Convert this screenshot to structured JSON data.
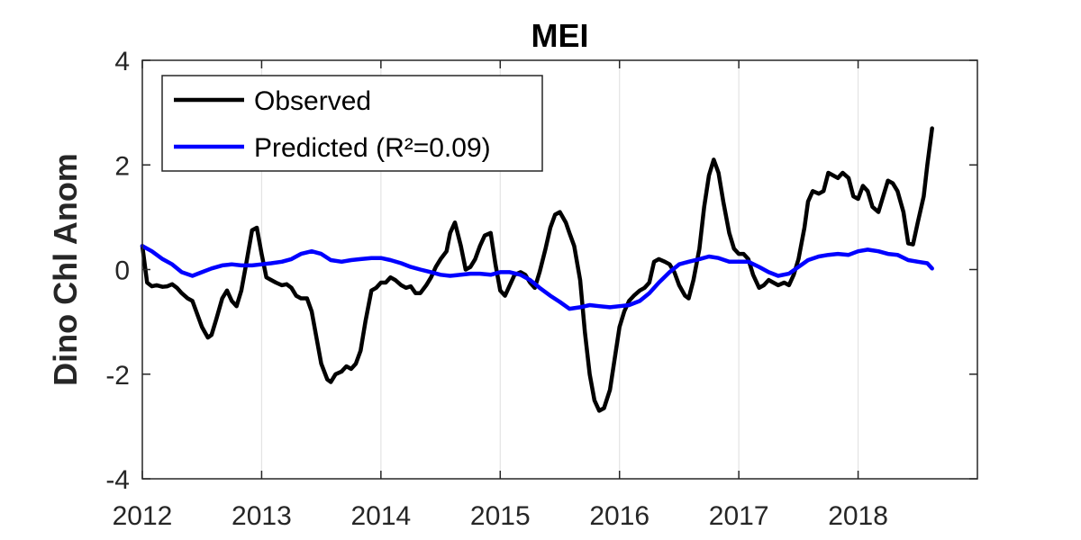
{
  "chart_data": {
    "type": "line",
    "title": "MEI",
    "xlabel": "",
    "ylabel": "Dino Chl Anom",
    "xlim": [
      2012,
      2019
    ],
    "ylim": [
      -4,
      4
    ],
    "x_ticks": [
      "2012",
      "2013",
      "2014",
      "2015",
      "2016",
      "2017",
      "2018"
    ],
    "y_ticks": [
      "-4",
      "-2",
      "0",
      "2",
      "4"
    ],
    "grid": "vertical",
    "legend_position": "top-left",
    "series": [
      {
        "name": "Observed",
        "color": "#000000",
        "points": [
          [
            2012.0,
            0.45
          ],
          [
            2012.04,
            -0.25
          ],
          [
            2012.08,
            -0.32
          ],
          [
            2012.12,
            -0.3
          ],
          [
            2012.17,
            -0.33
          ],
          [
            2012.21,
            -0.32
          ],
          [
            2012.25,
            -0.28
          ],
          [
            2012.29,
            -0.35
          ],
          [
            2012.33,
            -0.45
          ],
          [
            2012.38,
            -0.55
          ],
          [
            2012.42,
            -0.6
          ],
          [
            2012.46,
            -0.85
          ],
          [
            2012.5,
            -1.1
          ],
          [
            2012.55,
            -1.3
          ],
          [
            2012.58,
            -1.25
          ],
          [
            2012.62,
            -0.95
          ],
          [
            2012.67,
            -0.55
          ],
          [
            2012.71,
            -0.4
          ],
          [
            2012.75,
            -0.6
          ],
          [
            2012.79,
            -0.7
          ],
          [
            2012.83,
            -0.4
          ],
          [
            2012.87,
            0.1
          ],
          [
            2012.92,
            0.75
          ],
          [
            2012.96,
            0.8
          ],
          [
            2013.0,
            0.3
          ],
          [
            2013.04,
            -0.15
          ],
          [
            2013.08,
            -0.2
          ],
          [
            2013.12,
            -0.25
          ],
          [
            2013.17,
            -0.3
          ],
          [
            2013.21,
            -0.28
          ],
          [
            2013.25,
            -0.35
          ],
          [
            2013.29,
            -0.5
          ],
          [
            2013.33,
            -0.55
          ],
          [
            2013.38,
            -0.55
          ],
          [
            2013.42,
            -0.8
          ],
          [
            2013.46,
            -1.3
          ],
          [
            2013.5,
            -1.8
          ],
          [
            2013.55,
            -2.1
          ],
          [
            2013.58,
            -2.15
          ],
          [
            2013.62,
            -2.0
          ],
          [
            2013.67,
            -1.95
          ],
          [
            2013.71,
            -1.85
          ],
          [
            2013.75,
            -1.9
          ],
          [
            2013.79,
            -1.8
          ],
          [
            2013.83,
            -1.55
          ],
          [
            2013.87,
            -1.0
          ],
          [
            2013.92,
            -0.4
          ],
          [
            2013.96,
            -0.35
          ],
          [
            2014.0,
            -0.25
          ],
          [
            2014.04,
            -0.25
          ],
          [
            2014.08,
            -0.15
          ],
          [
            2014.12,
            -0.2
          ],
          [
            2014.17,
            -0.3
          ],
          [
            2014.21,
            -0.35
          ],
          [
            2014.25,
            -0.32
          ],
          [
            2014.29,
            -0.45
          ],
          [
            2014.33,
            -0.45
          ],
          [
            2014.38,
            -0.3
          ],
          [
            2014.42,
            -0.15
          ],
          [
            2014.46,
            0.05
          ],
          [
            2014.5,
            0.2
          ],
          [
            2014.55,
            0.35
          ],
          [
            2014.58,
            0.7
          ],
          [
            2014.62,
            0.9
          ],
          [
            2014.67,
            0.45
          ],
          [
            2014.71,
            0.0
          ],
          [
            2014.75,
            0.05
          ],
          [
            2014.79,
            0.2
          ],
          [
            2014.83,
            0.45
          ],
          [
            2014.87,
            0.65
          ],
          [
            2014.92,
            0.7
          ],
          [
            2014.96,
            0.1
          ],
          [
            2015.0,
            -0.4
          ],
          [
            2015.04,
            -0.5
          ],
          [
            2015.08,
            -0.3
          ],
          [
            2015.12,
            -0.1
          ],
          [
            2015.17,
            -0.05
          ],
          [
            2015.21,
            -0.1
          ],
          [
            2015.25,
            -0.25
          ],
          [
            2015.29,
            -0.35
          ],
          [
            2015.33,
            -0.05
          ],
          [
            2015.38,
            0.4
          ],
          [
            2015.42,
            0.8
          ],
          [
            2015.46,
            1.05
          ],
          [
            2015.5,
            1.1
          ],
          [
            2015.55,
            0.9
          ],
          [
            2015.58,
            0.7
          ],
          [
            2015.62,
            0.45
          ],
          [
            2015.67,
            -0.2
          ],
          [
            2015.71,
            -1.2
          ],
          [
            2015.75,
            -2.0
          ],
          [
            2015.79,
            -2.5
          ],
          [
            2015.83,
            -2.7
          ],
          [
            2015.87,
            -2.65
          ],
          [
            2015.92,
            -2.3
          ],
          [
            2015.96,
            -1.7
          ],
          [
            2016.0,
            -1.1
          ],
          [
            2016.04,
            -0.8
          ],
          [
            2016.08,
            -0.6
          ],
          [
            2016.12,
            -0.5
          ],
          [
            2016.17,
            -0.4
          ],
          [
            2016.21,
            -0.35
          ],
          [
            2016.25,
            -0.25
          ],
          [
            2016.29,
            0.15
          ],
          [
            2016.33,
            0.2
          ],
          [
            2016.38,
            0.15
          ],
          [
            2016.42,
            0.1
          ],
          [
            2016.46,
            -0.05
          ],
          [
            2016.5,
            -0.3
          ],
          [
            2016.55,
            -0.5
          ],
          [
            2016.58,
            -0.55
          ],
          [
            2016.62,
            -0.2
          ],
          [
            2016.67,
            0.4
          ],
          [
            2016.71,
            1.2
          ],
          [
            2016.75,
            1.8
          ],
          [
            2016.79,
            2.1
          ],
          [
            2016.83,
            1.85
          ],
          [
            2016.87,
            1.3
          ],
          [
            2016.92,
            0.7
          ],
          [
            2016.96,
            0.4
          ],
          [
            2017.0,
            0.3
          ],
          [
            2017.04,
            0.3
          ],
          [
            2017.08,
            0.2
          ],
          [
            2017.12,
            -0.1
          ],
          [
            2017.17,
            -0.35
          ],
          [
            2017.21,
            -0.3
          ],
          [
            2017.25,
            -0.2
          ],
          [
            2017.29,
            -0.25
          ],
          [
            2017.33,
            -0.3
          ],
          [
            2017.38,
            -0.25
          ],
          [
            2017.42,
            -0.3
          ],
          [
            2017.46,
            -0.1
          ],
          [
            2017.5,
            0.2
          ],
          [
            2017.55,
            0.8
          ],
          [
            2017.58,
            1.3
          ],
          [
            2017.62,
            1.5
          ],
          [
            2017.67,
            1.45
          ],
          [
            2017.71,
            1.5
          ],
          [
            2017.75,
            1.85
          ],
          [
            2017.79,
            1.8
          ],
          [
            2017.83,
            1.75
          ],
          [
            2017.87,
            1.85
          ],
          [
            2017.92,
            1.75
          ],
          [
            2017.96,
            1.4
          ],
          [
            2018.0,
            1.35
          ],
          [
            2018.04,
            1.6
          ],
          [
            2018.08,
            1.5
          ],
          [
            2018.12,
            1.2
          ],
          [
            2018.17,
            1.1
          ],
          [
            2018.21,
            1.4
          ],
          [
            2018.25,
            1.7
          ],
          [
            2018.29,
            1.65
          ],
          [
            2018.33,
            1.5
          ],
          [
            2018.38,
            1.1
          ],
          [
            2018.42,
            0.5
          ],
          [
            2018.46,
            0.48
          ],
          [
            2018.5,
            0.9
          ],
          [
            2018.55,
            1.4
          ],
          [
            2018.58,
            2.0
          ],
          [
            2018.62,
            2.7
          ]
        ]
      },
      {
        "name": "Predicted (R²=0.09)",
        "color": "#0000FF",
        "points": [
          [
            2012.0,
            0.45
          ],
          [
            2012.08,
            0.35
          ],
          [
            2012.17,
            0.2
          ],
          [
            2012.25,
            0.1
          ],
          [
            2012.33,
            -0.05
          ],
          [
            2012.42,
            -0.12
          ],
          [
            2012.5,
            -0.05
          ],
          [
            2012.58,
            0.02
          ],
          [
            2012.67,
            0.08
          ],
          [
            2012.75,
            0.1
          ],
          [
            2012.83,
            0.08
          ],
          [
            2012.92,
            0.08
          ],
          [
            2013.0,
            0.1
          ],
          [
            2013.08,
            0.12
          ],
          [
            2013.17,
            0.15
          ],
          [
            2013.25,
            0.2
          ],
          [
            2013.33,
            0.3
          ],
          [
            2013.42,
            0.35
          ],
          [
            2013.5,
            0.3
          ],
          [
            2013.58,
            0.18
          ],
          [
            2013.67,
            0.15
          ],
          [
            2013.75,
            0.18
          ],
          [
            2013.83,
            0.2
          ],
          [
            2013.92,
            0.22
          ],
          [
            2014.0,
            0.22
          ],
          [
            2014.08,
            0.18
          ],
          [
            2014.17,
            0.12
          ],
          [
            2014.25,
            0.05
          ],
          [
            2014.33,
            0.0
          ],
          [
            2014.42,
            -0.05
          ],
          [
            2014.5,
            -0.1
          ],
          [
            2014.58,
            -0.12
          ],
          [
            2014.67,
            -0.1
          ],
          [
            2014.75,
            -0.08
          ],
          [
            2014.83,
            -0.08
          ],
          [
            2014.92,
            -0.1
          ],
          [
            2015.0,
            -0.05
          ],
          [
            2015.08,
            -0.05
          ],
          [
            2015.17,
            -0.1
          ],
          [
            2015.25,
            -0.2
          ],
          [
            2015.33,
            -0.35
          ],
          [
            2015.42,
            -0.5
          ],
          [
            2015.5,
            -0.62
          ],
          [
            2015.58,
            -0.75
          ],
          [
            2015.67,
            -0.72
          ],
          [
            2015.75,
            -0.68
          ],
          [
            2015.83,
            -0.7
          ],
          [
            2015.92,
            -0.72
          ],
          [
            2016.0,
            -0.7
          ],
          [
            2016.08,
            -0.68
          ],
          [
            2016.17,
            -0.6
          ],
          [
            2016.25,
            -0.45
          ],
          [
            2016.33,
            -0.25
          ],
          [
            2016.42,
            -0.05
          ],
          [
            2016.5,
            0.1
          ],
          [
            2016.58,
            0.15
          ],
          [
            2016.67,
            0.2
          ],
          [
            2016.75,
            0.25
          ],
          [
            2016.83,
            0.22
          ],
          [
            2016.92,
            0.15
          ],
          [
            2017.0,
            0.15
          ],
          [
            2017.08,
            0.15
          ],
          [
            2017.17,
            0.05
          ],
          [
            2017.25,
            -0.05
          ],
          [
            2017.33,
            -0.12
          ],
          [
            2017.42,
            -0.08
          ],
          [
            2017.5,
            0.05
          ],
          [
            2017.58,
            0.18
          ],
          [
            2017.67,
            0.25
          ],
          [
            2017.75,
            0.28
          ],
          [
            2017.83,
            0.3
          ],
          [
            2017.92,
            0.28
          ],
          [
            2018.0,
            0.35
          ],
          [
            2018.08,
            0.38
          ],
          [
            2018.17,
            0.35
          ],
          [
            2018.25,
            0.3
          ],
          [
            2018.33,
            0.28
          ],
          [
            2018.42,
            0.18
          ],
          [
            2018.5,
            0.15
          ],
          [
            2018.58,
            0.12
          ],
          [
            2018.62,
            0.02
          ]
        ]
      }
    ]
  }
}
